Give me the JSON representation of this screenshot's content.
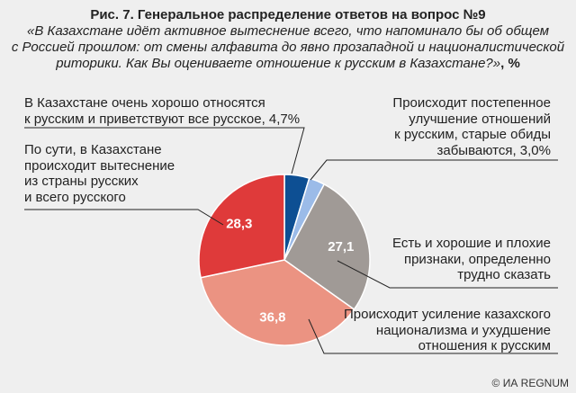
{
  "title": {
    "line1": "Рис. 7. Генеральное распределение ответов на вопрос №9",
    "line2": "«В Казахстане идёт активное вытеснение всего, что напоминало бы об общем",
    "line3": "с Россией прошлом: от смены алфавита до явно прозападной и националистической",
    "line4_italic": "риторики. Как Вы оцениваете отношение к русским в Казахстане?»",
    "line4_suffix": ", %"
  },
  "chart_data": {
    "type": "pie",
    "title": "Генеральное распределение ответов на вопрос №9",
    "slices": [
      {
        "name": "В Казахстане очень хорошо относятся к русским и приветствуют все русское",
        "value": 4.7,
        "color": "#0d4f93",
        "label": ""
      },
      {
        "name": "Происходит постепенное улучшение отношений к русским, старые обиды забываются",
        "value": 3.0,
        "color": "#9bbbe8",
        "label": ""
      },
      {
        "name": "Есть и хорошие и плохие признаки, определенно трудно сказать",
        "value": 27.1,
        "color": "#a09a96",
        "label": "27,1"
      },
      {
        "name": "Происходит усиление казахского национализма и ухудшение отношения к русским",
        "value": 36.8,
        "color": "#eb9382",
        "label": "36,8"
      },
      {
        "name": "По сути, в Казахстане происходит вытеснение из страны русских и всего русского",
        "value": 28.3,
        "color": "#df3a3a",
        "label": "28,3"
      }
    ]
  },
  "labels": {
    "l1": [
      "В Казахстане очень хорошо относятся",
      "к русским и приветствуют все русское, 4,7%"
    ],
    "l2": [
      "Происходит постепенное",
      "улучшение отношений",
      "к русским, старые обиды",
      "забываются, 3,0%"
    ],
    "l3": [
      "Есть и хорошие и плохие",
      "признаки, определенно",
      "трудно сказать"
    ],
    "l4": [
      "Происходит усиление казахского",
      "национализма и ухудшение",
      "отношения к русским"
    ],
    "l5": [
      "По сути, в Казахстане",
      "происходит вытеснение",
      "из страны русских",
      "и всего русского"
    ]
  },
  "credit": "© ИА REGNUM"
}
